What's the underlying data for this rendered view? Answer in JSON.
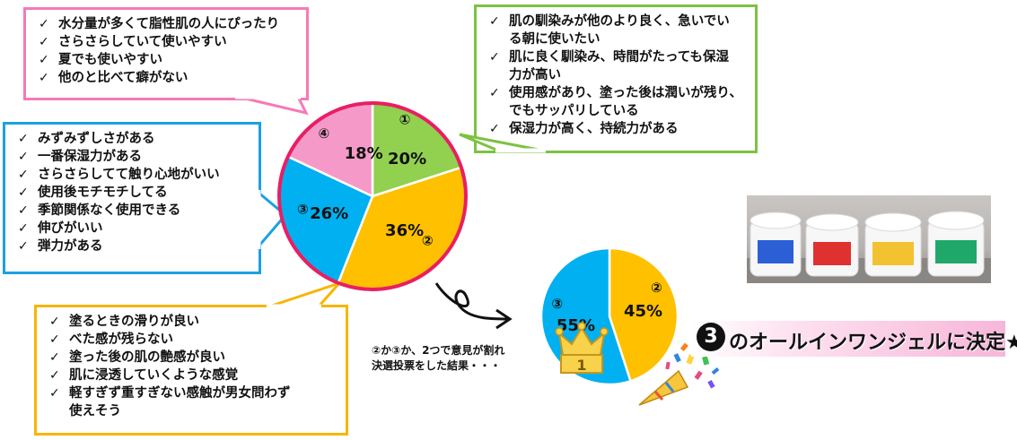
{
  "chart_data": [
    {
      "type": "pie",
      "slices": [
        {
          "marker": "①",
          "value": 20,
          "label": "20%",
          "color": "#92d050"
        },
        {
          "marker": "②",
          "value": 36,
          "label": "36%",
          "color": "#ffc000"
        },
        {
          "marker": "③",
          "value": 26,
          "label": "26%",
          "color": "#00b0f0"
        },
        {
          "marker": "④",
          "value": 18,
          "label": "18%",
          "color": "#f59ac8"
        }
      ],
      "border_color": "#e91e63"
    },
    {
      "type": "pie",
      "slices": [
        {
          "marker": "②",
          "value": 45,
          "label": "45%",
          "color": "#ffc000"
        },
        {
          "marker": "③",
          "value": 55,
          "label": "55%",
          "color": "#00b0f0"
        }
      ],
      "crown_text": "1"
    }
  ],
  "comments": {
    "pink": [
      "水分量が多くて脂性肌の人にぴったり",
      "さらさらしていて使いやすい",
      "夏でも使いやすい",
      "他のと比べて癖がない"
    ],
    "green": [
      [
        "肌の馴染みが他のより良く、急いでい",
        "る朝に使いたい"
      ],
      [
        "肌に良く馴染み、時間がたっても保湿",
        "力が高い"
      ],
      [
        "使用感があり、塗った後は潤いが残り、",
        "でもサッパリしている"
      ],
      [
        "保湿力が高く、持続力がある"
      ]
    ],
    "blue": [
      "みずみずしさがある",
      "一番保湿力がある",
      "さらさらしてて触り心地がいい",
      "使用後モチモチしてる",
      "季節関係なく使用できる",
      "伸びがいい",
      "弾力がある"
    ],
    "yellow": [
      [
        "塗るときの滑りが良い"
      ],
      [
        "べた感が残らない"
      ],
      [
        "塗った後の肌の艶感が良い"
      ],
      [
        "肌に浸透していくような感覚"
      ],
      [
        "軽すぎず重すぎない感触が男女問わず",
        "使えそう"
      ]
    ]
  },
  "check_mark": "✓",
  "note": [
    "②か③か、2つで意見が割れ",
    "決選投票をした結果・・・"
  ],
  "decision": {
    "circle": "3",
    "text": "のオールインワンジェルに決定★"
  },
  "colors": {
    "pink": "#f57ab8",
    "green": "#7cc242",
    "blue": "#1ba1e2",
    "yellow": "#f7b500",
    "decision_bg": "#f7b6d9"
  }
}
